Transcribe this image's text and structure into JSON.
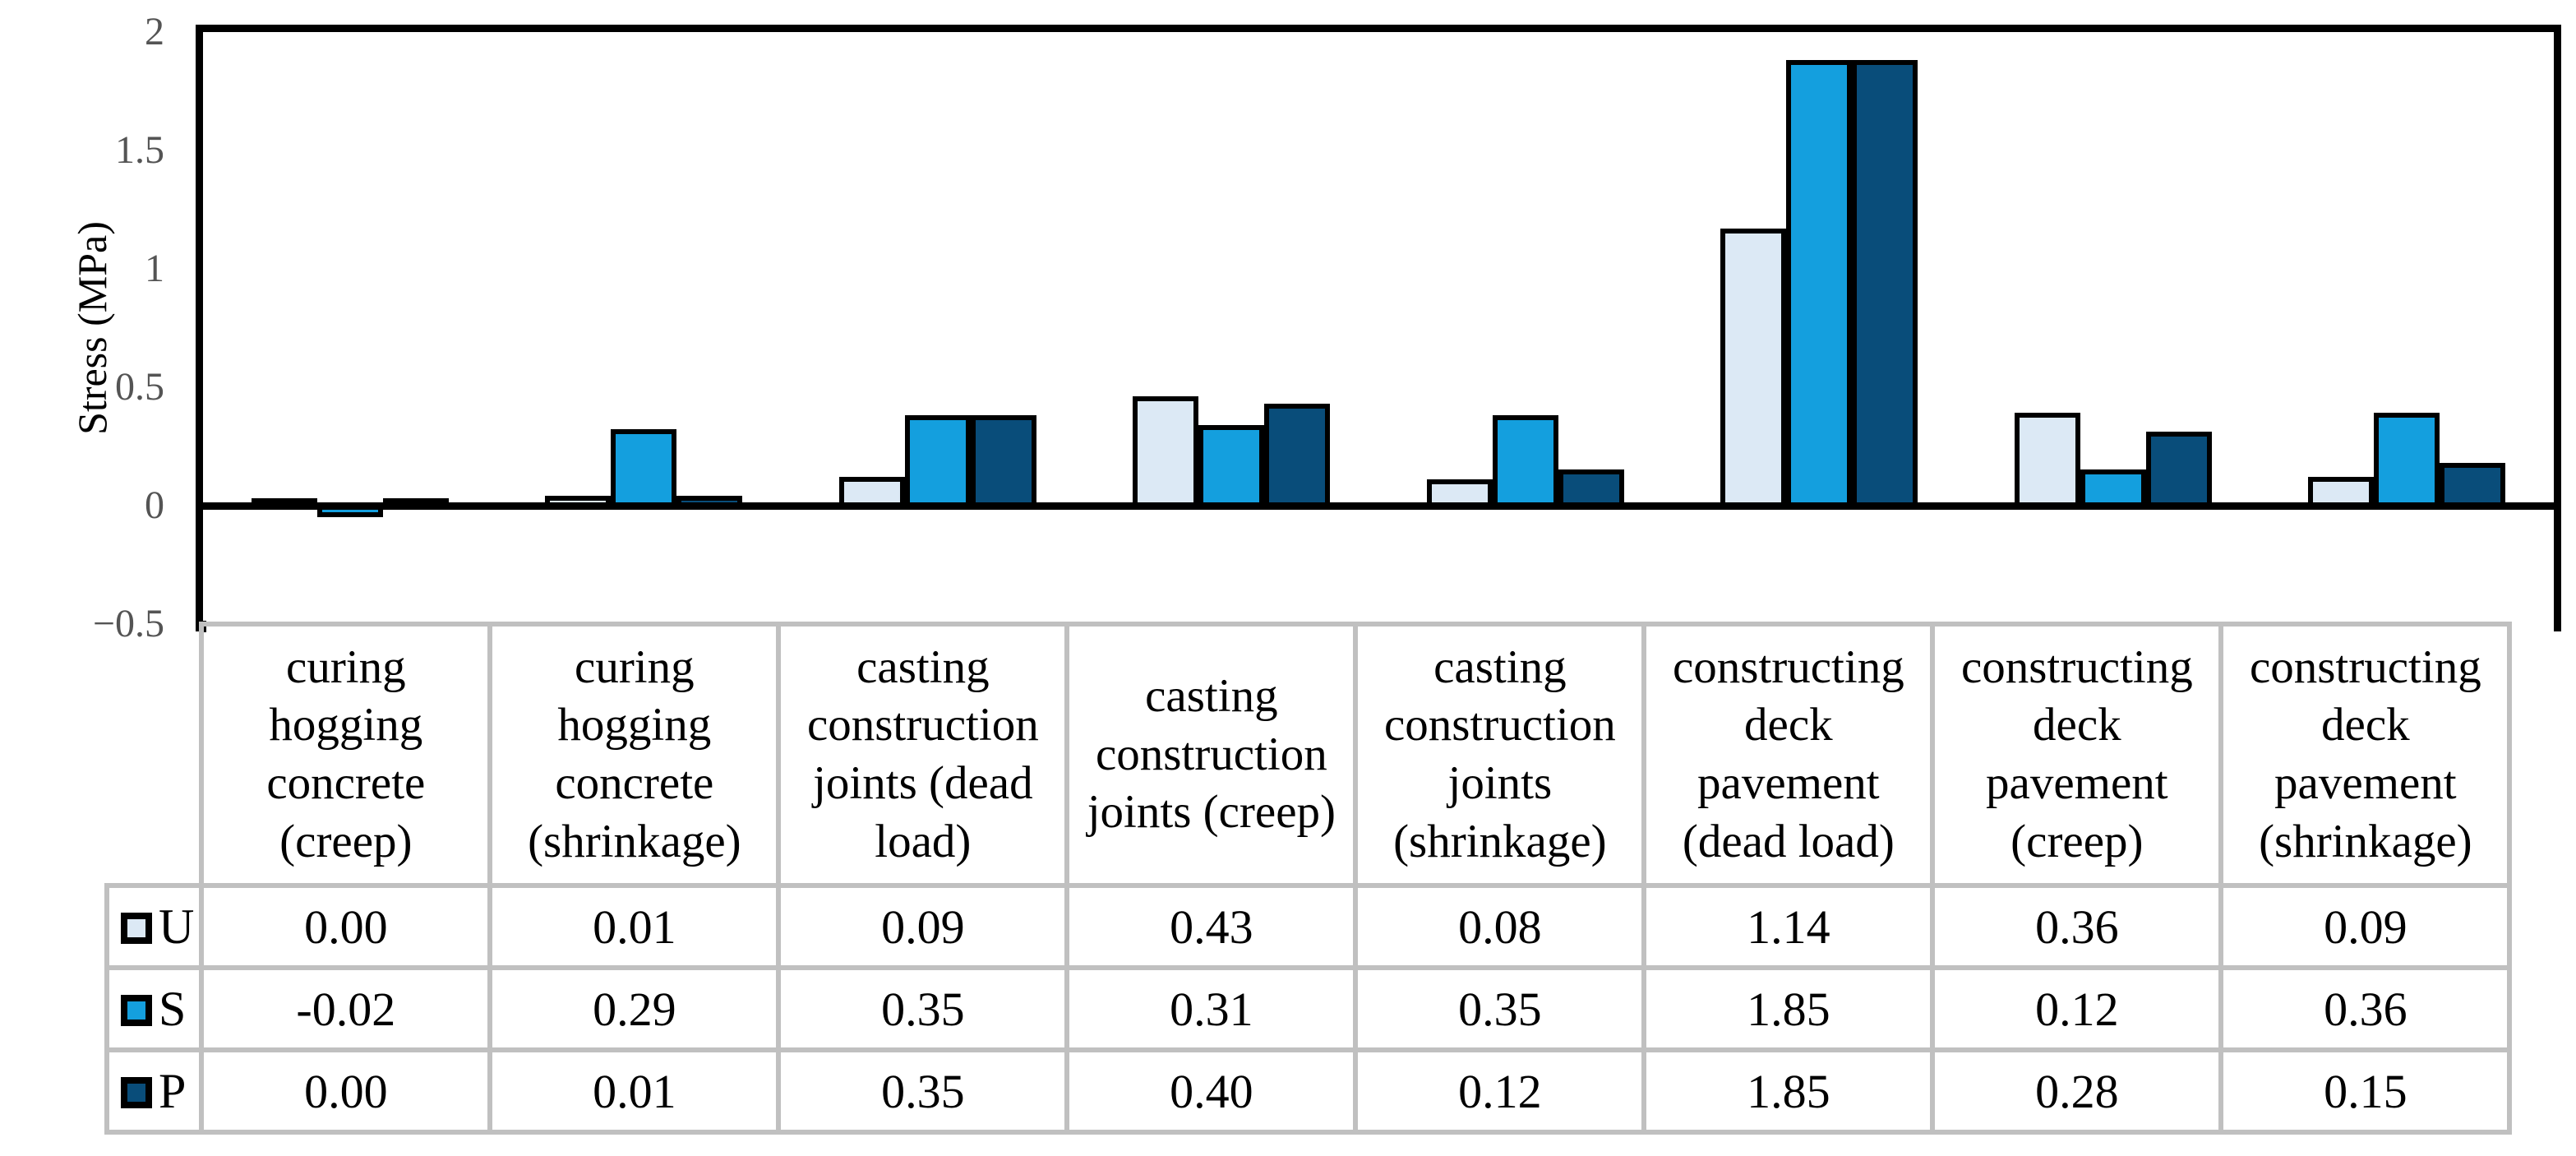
{
  "chart_data": {
    "type": "bar",
    "title": "",
    "ylabel": "Stress (MPa)",
    "ylim": [
      -0.5,
      2
    ],
    "ytick_labels": [
      "2",
      "1.5",
      "1",
      "0.5",
      "0",
      "−0.5"
    ],
    "ytick_values": [
      2,
      1.5,
      1,
      0.5,
      0,
      -0.5
    ],
    "grid": false,
    "legend_position": "table-left",
    "bar_outline_color": "#000000",
    "axis_line_color": "#000000",
    "tick_label_color": "#545454",
    "table_grid_color": "#c0c0c0",
    "categories": [
      "curing hogging concrete (creep)",
      "curing hogging concrete (shrinkage)",
      "casting construction joints (dead load)",
      "casting construction joints (creep)",
      "casting construction joints (shrinkage)",
      "constructing deck pavement (dead load)",
      "constructing deck pavement (creep)",
      "constructing deck pavement (shrinkage)"
    ],
    "series": [
      {
        "name": "U",
        "color": "#dce9f5",
        "values": [
          0.0,
          0.01,
          0.09,
          0.43,
          0.08,
          1.14,
          0.36,
          0.09
        ],
        "display": [
          "0.00",
          "0.01",
          "0.09",
          "0.43",
          "0.08",
          "1.14",
          "0.36",
          "0.09"
        ]
      },
      {
        "name": "S",
        "color": "#149fde",
        "values": [
          -0.02,
          0.29,
          0.35,
          0.31,
          0.35,
          1.85,
          0.12,
          0.36
        ],
        "display": [
          "-0.02",
          "0.29",
          "0.35",
          "0.31",
          "0.35",
          "1.85",
          "0.12",
          "0.36"
        ]
      },
      {
        "name": "P",
        "color": "#094d7a",
        "values": [
          0.0,
          0.01,
          0.35,
          0.4,
          0.12,
          1.85,
          0.28,
          0.15
        ],
        "display": [
          "0.00",
          "0.01",
          "0.35",
          "0.40",
          "0.12",
          "1.85",
          "0.28",
          "0.15"
        ]
      }
    ]
  }
}
